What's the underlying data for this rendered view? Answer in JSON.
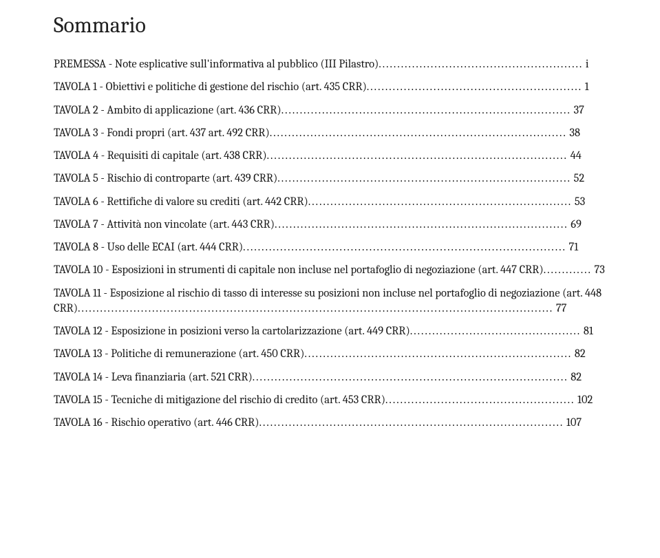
{
  "title": "Sommario",
  "font": {
    "family": "Cambria",
    "title_size_pt": 24,
    "body_size_pt": 12
  },
  "colors": {
    "text": "#181818",
    "background": "#ffffff"
  },
  "toc": [
    {
      "label": "PREMESSA - Note esplicative sull'informativa al pubblico (III Pilastro)",
      "page": "i"
    },
    {
      "label": "TAVOLA 1 - Obiettivi e politiche di gestione del rischio (art. 435 CRR)",
      "page": "1"
    },
    {
      "label": "TAVOLA 2 - Ambito di applicazione (art. 436 CRR)",
      "page": "37"
    },
    {
      "label": "TAVOLA 3 - Fondi propri (art. 437 art. 492 CRR)",
      "page": "38"
    },
    {
      "label": "TAVOLA 4 - Requisiti di capitale (art. 438 CRR)",
      "page": "44"
    },
    {
      "label": "TAVOLA 5 - Rischio di controparte (art. 439 CRR)",
      "page": "52"
    },
    {
      "label": "TAVOLA 6 - Rettifiche di valore su crediti (art. 442 CRR)",
      "page": "53"
    },
    {
      "label": "TAVOLA 7 - Attività non vincolate (art. 443 CRR)",
      "page": "69"
    },
    {
      "label": "TAVOLA 8 - Uso delle ECAI (art. 444 CRR)",
      "page": "71"
    },
    {
      "label": "TAVOLA 10 - Esposizioni in strumenti di capitale non incluse nel portafoglio di negoziazione (art. 447 CRR)",
      "page": "73"
    },
    {
      "label": "TAVOLA 11 - Esposizione al rischio di tasso di interesse su posizioni non incluse nel portafoglio di negoziazione (art. 448 CRR)",
      "page": "77"
    },
    {
      "label": "TAVOLA 12 - Esposizione in posizioni verso la cartolarizzazione (art. 449 CRR)",
      "page": "81"
    },
    {
      "label": "TAVOLA 13 - Politiche di remunerazione (art. 450 CRR)",
      "page": "82"
    },
    {
      "label": "TAVOLA 14 - Leva finanziaria (art. 521 CRR)",
      "page": "82"
    },
    {
      "label": "TAVOLA 15 - Tecniche di mitigazione del rischio di credito (art. 453 CRR)",
      "page": "102"
    },
    {
      "label": "TAVOLA 16 - Rischio operativo (art. 446 CRR)",
      "page": "107"
    }
  ]
}
